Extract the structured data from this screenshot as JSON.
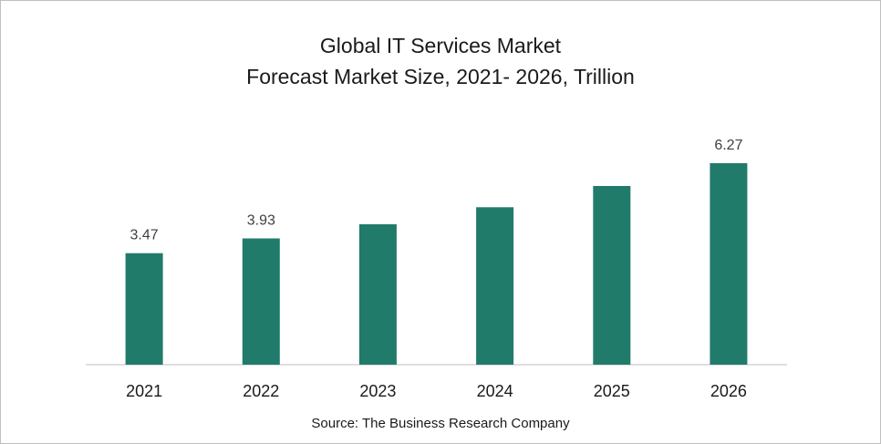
{
  "chart_data": {
    "type": "bar",
    "title": "Global IT Services Market",
    "subtitle": "Forecast Market Size, 2021- 2026, Trillion",
    "categories": [
      "2021",
      "2022",
      "2023",
      "2024",
      "2025",
      "2026"
    ],
    "values": [
      3.47,
      3.93,
      4.37,
      4.9,
      5.56,
      6.27
    ],
    "data_labels": [
      "3.47",
      "3.93",
      "",
      "",
      "",
      "6.27"
    ],
    "ylim": [
      0,
      7
    ],
    "grid": false,
    "legend": "none",
    "bar_color": "#217b6b",
    "axis_color": "#bfbfbf"
  },
  "source": "Source: The Business Research Company"
}
